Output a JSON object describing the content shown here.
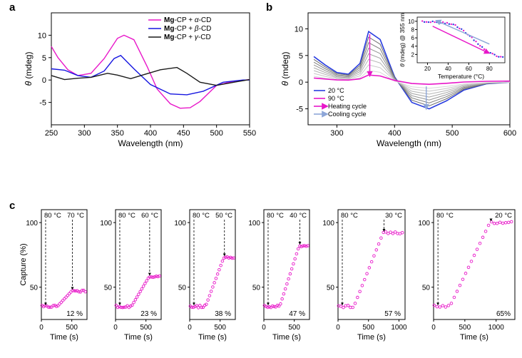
{
  "panel_a": {
    "label": "a",
    "type": "line",
    "xaxis": {
      "min": 250,
      "max": 550,
      "ticks": [
        250,
        300,
        350,
        400,
        450,
        500,
        550
      ],
      "label": "Wavelength (nm)"
    },
    "yaxis": {
      "min": -10,
      "max": 15,
      "ticks": [
        -5,
        0,
        5,
        10
      ],
      "label": "θ (mdeg)"
    },
    "series": [
      {
        "name": "Mg-CP + α-CD",
        "color": "#e817c9",
        "x": [
          250,
          260,
          275,
          290,
          310,
          330,
          350,
          360,
          375,
          395,
          410,
          430,
          445,
          460,
          475,
          500,
          525,
          550
        ],
        "y": [
          7.5,
          5.0,
          2.3,
          1.0,
          1.5,
          4.8,
          9.3,
          10.0,
          9.0,
          3.0,
          -2.0,
          -5.3,
          -6.3,
          -6.2,
          -4.8,
          -1.2,
          -0.3,
          0.1
        ]
      },
      {
        "name": "Mg-CP + β-CD",
        "color": "#1616e0",
        "x": [
          250,
          270,
          290,
          310,
          330,
          345,
          355,
          375,
          400,
          430,
          455,
          480,
          510,
          540,
          550
        ],
        "y": [
          2.5,
          2.2,
          1.0,
          0.6,
          2.0,
          4.8,
          5.5,
          2.5,
          -1.0,
          -3.1,
          -3.3,
          -2.5,
          -0.5,
          0.0,
          0.0
        ]
      },
      {
        "name": "Mg-CP + γ-CD",
        "color": "#1a1a1a",
        "x": [
          250,
          270,
          290,
          310,
          335,
          350,
          370,
          390,
          415,
          440,
          455,
          475,
          500,
          530,
          550
        ],
        "y": [
          1.0,
          0.1,
          0.4,
          0.6,
          1.5,
          1.1,
          0.3,
          1.2,
          2.3,
          2.8,
          1.5,
          -0.5,
          -1.2,
          -0.4,
          0.1
        ]
      }
    ],
    "legend_pos": "top-right",
    "title_fontsize": 10
  },
  "panel_b": {
    "label": "b",
    "type": "line",
    "xaxis": {
      "min": 250,
      "max": 600,
      "ticks": [
        300,
        400,
        500,
        600
      ],
      "label": "Wavelength (nm)"
    },
    "yaxis": {
      "min": -8,
      "max": 13,
      "ticks": [
        -5,
        0,
        5,
        10
      ],
      "label": "θ (mdeg)"
    },
    "temp_low": "20 °C",
    "temp_high": "90 °C",
    "cycle_heating": "Heating cycle",
    "cycle_cooling": "Cooling cycle",
    "colors": {
      "low": "#2a3ee0",
      "high": "#e817c9",
      "mid": [
        "#555",
        "#666",
        "#777",
        "#888",
        "#999",
        "#aaa",
        "#bbb"
      ]
    },
    "arrow_color_heating": "#e817c9",
    "arrow_color_cooling": "#8da6d8",
    "inset": {
      "xaxis": {
        "min": 10,
        "max": 95,
        "ticks": [
          20,
          40,
          60,
          80
        ],
        "label": "Temperature (°C)"
      },
      "yaxis": {
        "min": 0,
        "max": 11,
        "ticks": [
          2,
          4,
          6,
          8,
          10
        ],
        "label": "θ (mdeg) @ 355 nm"
      },
      "scatter_colors": [
        "#e817c9",
        "#2a3ee0"
      ],
      "arrow_heating": "#e817c9",
      "arrow_cooling": "#8da6d8"
    }
  },
  "panel_c": {
    "label": "c",
    "type": "scatter-line",
    "yaxis": {
      "min": 25,
      "max": 110,
      "ticks": [
        50,
        100
      ],
      "label": "Capture (%)"
    },
    "marker_color": "#e817c9",
    "marker_style": "open-circle",
    "marker_size": 3,
    "arrow_color": "#000",
    "arrow_style": "dashed",
    "subpanels": [
      {
        "target_temp": "70 °C",
        "start_temp": "80 °C",
        "final_pct": "12 %",
        "xmax": 750,
        "xticks": [
          0,
          500
        ],
        "rise_start": 260,
        "rise_end": 500,
        "plateau": 47
      },
      {
        "target_temp": "60 °C",
        "start_temp": "80 °C",
        "final_pct": "23 %",
        "xmax": 750,
        "xticks": [
          0,
          500
        ],
        "rise_start": 260,
        "rise_end": 550,
        "plateau": 58
      },
      {
        "target_temp": "50 °C",
        "start_temp": "80 °C",
        "final_pct": "38 %",
        "xmax": 750,
        "xticks": [
          0,
          500
        ],
        "rise_start": 260,
        "rise_end": 560,
        "plateau": 73
      },
      {
        "target_temp": "40 °C",
        "start_temp": "80 °C",
        "final_pct": "47 %",
        "xmax": 750,
        "xticks": [
          0,
          500
        ],
        "rise_start": 260,
        "rise_end": 580,
        "plateau": 82
      },
      {
        "target_temp": "30 °C",
        "start_temp": "80 °C",
        "final_pct": "57 %",
        "xmax": 1100,
        "xticks": [
          0,
          500,
          1000
        ],
        "rise_start": 260,
        "rise_end": 740,
        "plateau": 92
      },
      {
        "target_temp": "20 °C",
        "start_temp": "80 °C",
        "final_pct": "65%",
        "xmax": 1300,
        "xticks": [
          0,
          500,
          1000
        ],
        "rise_start": 260,
        "rise_end": 900,
        "plateau": 100
      }
    ],
    "xlabel": "Time (s)"
  }
}
